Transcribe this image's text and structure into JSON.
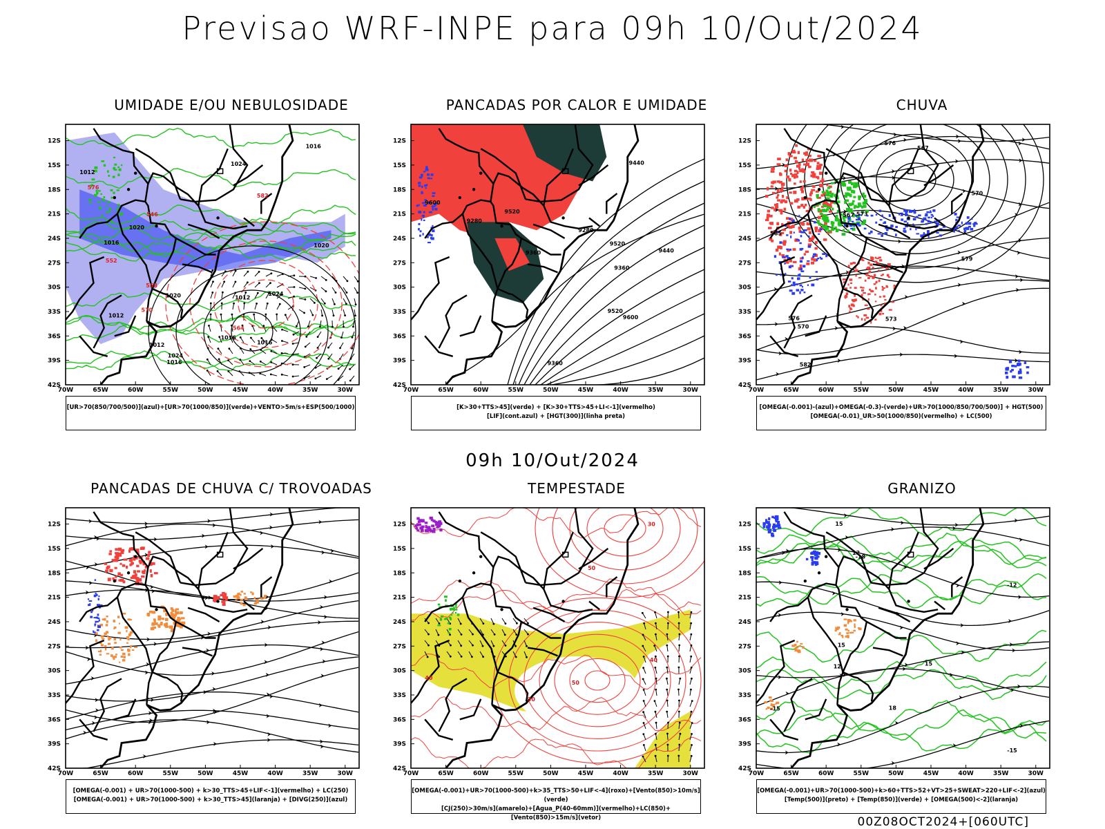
{
  "title": "Previsao WRF-INPE  para 09h 10/Out/2024",
  "mid_date": "09h 10/Out/2024",
  "run_label": "00Z08OCT2024+[060UTC]",
  "lat_ticks": [
    "12S",
    "15S",
    "18S",
    "21S",
    "24S",
    "27S",
    "30S",
    "33S",
    "36S",
    "39S",
    "42S"
  ],
  "lon_ticks": [
    "70W",
    "65W",
    "60W",
    "55W",
    "50W",
    "45W",
    "40W",
    "35W",
    "30W"
  ],
  "colors": {
    "red": "#f0413c",
    "green": "#22c31e",
    "blue": "#2a3cf0",
    "lightblue": "#a9a9f0",
    "darkgreen": "#1e3c37",
    "yellow": "#e6e03c",
    "orange": "#f08c3c",
    "purple": "#9b1ec8"
  },
  "panels": [
    {
      "title": "UMIDADE E/OU NEBULOSIDADE",
      "legend": [
        "[UR>70(850/700/500)](azul)+[UR>70(1000/850)](verde)+VENTO>5m/s+ESP(500/1000)"
      ],
      "labels": [
        "1012",
        "1016",
        "1012",
        "1016",
        "1020",
        "1024",
        "1016",
        "1016",
        "1012",
        "1020",
        "1024",
        "1016",
        "1012",
        "1020",
        "1024",
        "576",
        "570",
        "564",
        "558",
        "552",
        "582",
        "546"
      ]
    },
    {
      "title": "PANCADAS POR CALOR E UMIDADE",
      "legend": [
        "[K>30+TTS>45](verde) + [K>30+TTS>45+LI<-1](vermelho)",
        "[LIF](cont.azul) + [HGT(300)](linha preta)"
      ],
      "labels": [
        "9600",
        "9520",
        "9440",
        "9360",
        "9280",
        "9520",
        "9440",
        "9360",
        "9600",
        "9520",
        "9280",
        "9360"
      ]
    },
    {
      "title": "CHUVA",
      "legend": [
        "[OMEGA(-0.001)-(azul)+OMEGA(-0.3)-(verde)+UR>70(1000/850/700/500)] + HGT(500)",
        "[OMEGA(-0.01)_UR>50(1000/850)(vermelho) + LC(500)"
      ],
      "labels": [
        "585",
        "576",
        "573",
        "570",
        "567",
        "582",
        "579",
        "576",
        "573",
        "570",
        "567"
      ]
    },
    {
      "title": "PANCADAS DE CHUVA C/ TROVOADAS",
      "legend": [
        "[OMEGA(-0.001) + UR>70(1000-500) + k>30_TTS>45+LIF<-1](vermelho) + LC(250)",
        "[OMEGA(-0.001) + UR>70(1000-500) + k>30_TTS>45](laranja) + [DIVG(250)](azul)"
      ],
      "labels": []
    },
    {
      "title": "TEMPESTADE",
      "legend": [
        "[OMEGA(-0.001)+UR>70(1000-500)+k>35_TTS>50+LIF<-4](roxo)+[Vento(850)>10m/s](verde)",
        "[CJ(250)>30m/s](amarelo)+[Agua_P(40-60mm)](vermelho)+LC(850)+[Vento(850)>15m/s](vetor)"
      ],
      "labels": [
        "40",
        "50",
        "30",
        "40",
        "50",
        "30"
      ]
    },
    {
      "title": "GRANIZO",
      "legend": [
        "[OMEGA(-0.001)+UR>70(1000-500)+k>60+TTS>52+VT>25+SWEAT>220+LIF<-2](azul)",
        "[Temp(500)](preto) + [Temp(850)](verde) + [OMEGA(500)<-2](laranja)"
      ],
      "labels": [
        "-15",
        "-18",
        "-15",
        "-12",
        "12",
        "15",
        "12",
        "15",
        "18",
        "15"
      ]
    }
  ]
}
